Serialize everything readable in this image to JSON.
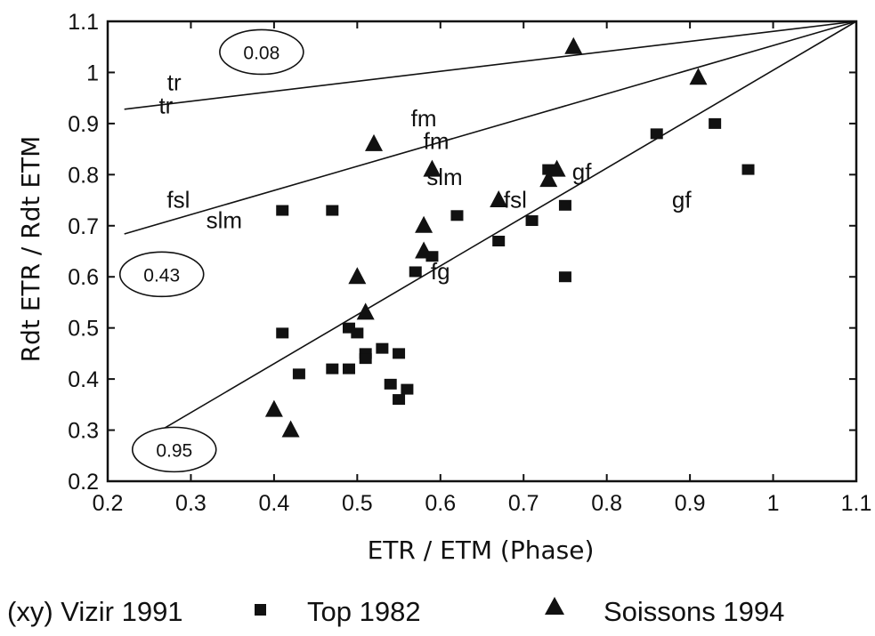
{
  "chart_data": {
    "type": "scatter",
    "xlabel": "ETR / ETM (Phase)",
    "ylabel": "Rdt ETR / Rdt ETM",
    "xlim": [
      0.2,
      1.1
    ],
    "ylim": [
      0.2,
      1.1
    ],
    "xticks": [
      "0.2",
      "0.3",
      "0.4",
      "0.5",
      "0.6",
      "0.7",
      "0.8",
      "0.9",
      "1",
      "1.1"
    ],
    "yticks": [
      "0.2",
      "0.3",
      "0.4",
      "0.5",
      "0.6",
      "0.7",
      "0.8",
      "0.9",
      "1",
      "1.1"
    ],
    "grid": false,
    "legend_position": "bottom",
    "series": [
      {
        "name": "Top 1982",
        "marker": "square",
        "points": [
          [
            0.41,
            0.73
          ],
          [
            0.47,
            0.73
          ],
          [
            0.41,
            0.49
          ],
          [
            0.43,
            0.41
          ],
          [
            0.47,
            0.42
          ],
          [
            0.49,
            0.42
          ],
          [
            0.49,
            0.5
          ],
          [
            0.5,
            0.49
          ],
          [
            0.51,
            0.45
          ],
          [
            0.51,
            0.44
          ],
          [
            0.53,
            0.46
          ],
          [
            0.55,
            0.45
          ],
          [
            0.54,
            0.39
          ],
          [
            0.55,
            0.36
          ],
          [
            0.56,
            0.38
          ],
          [
            0.57,
            0.61
          ],
          [
            0.59,
            0.64
          ],
          [
            0.62,
            0.72
          ],
          [
            0.67,
            0.67
          ],
          [
            0.71,
            0.71
          ],
          [
            0.73,
            0.81
          ],
          [
            0.75,
            0.74
          ],
          [
            0.75,
            0.6
          ],
          [
            0.86,
            0.88
          ],
          [
            0.93,
            0.9
          ],
          [
            0.97,
            0.81
          ]
        ]
      },
      {
        "name": "Soissons 1994",
        "marker": "triangle",
        "points": [
          [
            0.4,
            0.34
          ],
          [
            0.42,
            0.3
          ],
          [
            0.5,
            0.6
          ],
          [
            0.51,
            0.53
          ],
          [
            0.52,
            0.86
          ],
          [
            0.58,
            0.7
          ],
          [
            0.58,
            0.65
          ],
          [
            0.59,
            0.81
          ],
          [
            0.67,
            0.75
          ],
          [
            0.73,
            0.79
          ],
          [
            0.74,
            0.81
          ],
          [
            0.76,
            1.05
          ],
          [
            0.91,
            0.99
          ]
        ]
      }
    ],
    "point_labels": [
      {
        "text": "tr",
        "x": 0.28,
        "y": 0.965
      },
      {
        "text": "tr",
        "x": 0.27,
        "y": 0.92
      },
      {
        "text": "fm",
        "x": 0.58,
        "y": 0.895
      },
      {
        "text": "fm",
        "x": 0.595,
        "y": 0.85
      },
      {
        "text": "slm",
        "x": 0.605,
        "y": 0.78
      },
      {
        "text": "slm",
        "x": 0.34,
        "y": 0.695
      },
      {
        "text": "fsl",
        "x": 0.285,
        "y": 0.735
      },
      {
        "text": "fsl",
        "x": 0.69,
        "y": 0.735
      },
      {
        "text": "gf",
        "x": 0.77,
        "y": 0.79
      },
      {
        "text": "gf",
        "x": 0.89,
        "y": 0.735
      },
      {
        "text": "fg",
        "x": 0.6,
        "y": 0.595
      }
    ],
    "fit_lines": [
      {
        "label": "0.08",
        "from": [
          0.22,
          0.928
        ],
        "to": [
          1.1,
          1.1
        ],
        "label_at": [
          0.385,
          1.04
        ]
      },
      {
        "label": "0.43",
        "from": [
          0.22,
          0.684
        ],
        "to": [
          1.1,
          1.1
        ],
        "label_at": [
          0.265,
          0.605
        ]
      },
      {
        "label": "0.95",
        "from": [
          0.26,
          0.296
        ],
        "to": [
          1.1,
          1.1
        ],
        "label_at": [
          0.28,
          0.262
        ]
      }
    ]
  },
  "legend": {
    "vizir_label": "(xy) Vizir 1991",
    "top_label": "Top 1982",
    "soissons_label": "Soissons 1994"
  }
}
